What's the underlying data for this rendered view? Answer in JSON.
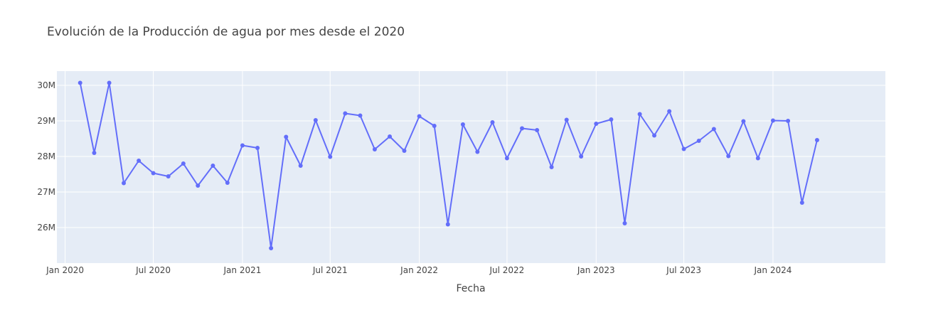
{
  "chart_data": {
    "type": "line",
    "title": "Evolución de la Producción de agua por mes desde el 2020",
    "xlabel": "Fecha",
    "ylabel": "",
    "x_ticks": [
      "Jan 2020",
      "Jul 2020",
      "Jan 2021",
      "Jul 2021",
      "Jan 2022",
      "Jul 2022",
      "Jan 2023",
      "Jul 2023",
      "Jan 2024"
    ],
    "y_ticks": [
      "26M",
      "27M",
      "28M",
      "29M",
      "30M"
    ],
    "x_range": [
      "2019-12-15",
      "2024-08-20"
    ],
    "ylim": [
      25000000,
      30400000
    ],
    "legend": "none",
    "grid": true,
    "colors": {
      "line": "#636efa",
      "plot_bg": "#e5ecf6",
      "grid": "#ffffff",
      "text": "#444444"
    },
    "series": [
      {
        "x": [
          "2020-02-01",
          "2020-03-01",
          "2020-04-01",
          "2020-05-01",
          "2020-06-01",
          "2020-07-01",
          "2020-08-01",
          "2020-09-01",
          "2020-10-01",
          "2020-11-01",
          "2020-12-01",
          "2021-01-01",
          "2021-02-01",
          "2021-03-01",
          "2021-04-01",
          "2021-05-01",
          "2021-06-01",
          "2021-07-01",
          "2021-08-01",
          "2021-09-01",
          "2021-10-01",
          "2021-11-01",
          "2021-12-01",
          "2022-01-01",
          "2022-02-01",
          "2022-03-01",
          "2022-04-01",
          "2022-05-01",
          "2022-06-01",
          "2022-07-01",
          "2022-08-01",
          "2022-09-01",
          "2022-10-01",
          "2022-11-01",
          "2022-12-01",
          "2023-01-01",
          "2023-02-01",
          "2023-03-01",
          "2023-04-01",
          "2023-05-01",
          "2023-06-01",
          "2023-07-01",
          "2023-08-01",
          "2023-09-01",
          "2023-10-01",
          "2023-11-01",
          "2023-12-01",
          "2024-01-01",
          "2024-02-01",
          "2024-03-01",
          "2024-04-01"
        ],
        "y": [
          30070000,
          28100000,
          30070000,
          27250000,
          27880000,
          27530000,
          27440000,
          27800000,
          27180000,
          27740000,
          27260000,
          28310000,
          28240000,
          25420000,
          28550000,
          27740000,
          29020000,
          27990000,
          29210000,
          29150000,
          28200000,
          28560000,
          28160000,
          29130000,
          28860000,
          26090000,
          28900000,
          28130000,
          28960000,
          27950000,
          28790000,
          28740000,
          27700000,
          29030000,
          28000000,
          28920000,
          29040000,
          26120000,
          29190000,
          28590000,
          29270000,
          28210000,
          28440000,
          28770000,
          28010000,
          28990000,
          27950000,
          29010000,
          29000000,
          26700000,
          28460000
        ]
      }
    ]
  }
}
